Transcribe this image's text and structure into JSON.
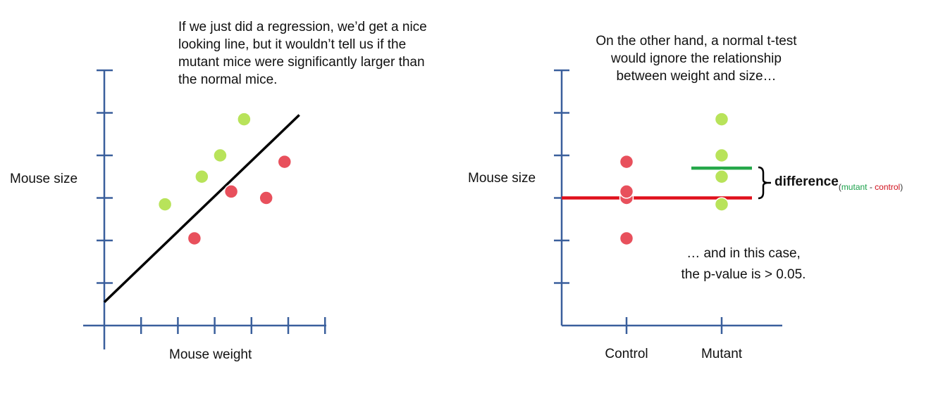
{
  "left_panel": {
    "caption": [
      "If we just did a regression, we’d get a nice",
      "looking line, but it wouldn’t tell us if the",
      "mutant mice were significantly larger than",
      "the normal mice."
    ]
  },
  "right_panel": {
    "caption": [
      "On the other hand, a normal t-test",
      "would ignore the relationship",
      "between weight and size…"
    ],
    "note": [
      "… and in this case,",
      "the p-value is > 0.05."
    ],
    "difference_label": "difference",
    "difference_subscript": {
      "open": "(",
      "mutant": "mutant",
      "dash": " - ",
      "control": "control",
      "close": ")"
    }
  },
  "colors": {
    "axis": "#3a5f9c",
    "green_point": "#b8e35a",
    "red_point": "#e8505c",
    "control_line": "#e0101c",
    "mutant_line": "#25a84a",
    "regression_line": "#000000"
  },
  "chart_data": [
    {
      "type": "scatter",
      "xlabel": "Mouse weight",
      "ylabel": "Mouse size",
      "xlim": [
        0,
        6
      ],
      "ylim": [
        0,
        6
      ],
      "x_ticks": 6,
      "y_ticks": 6,
      "series": [
        {
          "color": "green",
          "points": [
            [
              1.65,
              2.85
            ],
            [
              2.65,
              3.5
            ],
            [
              3.15,
              4.0
            ],
            [
              3.8,
              4.85
            ]
          ]
        },
        {
          "color": "red",
          "points": [
            [
              2.45,
              2.05
            ],
            [
              3.45,
              3.15
            ],
            [
              4.4,
              3.0
            ],
            [
              4.9,
              3.85
            ]
          ]
        }
      ],
      "regression_line": [
        [
          0,
          0.55
        ],
        [
          5.3,
          4.95
        ]
      ]
    },
    {
      "type": "scatter",
      "ylabel": "Mouse size",
      "categories": [
        "Control",
        "Mutant"
      ],
      "ylim": [
        0,
        6
      ],
      "y_ticks": 6,
      "series": [
        {
          "category": "Control",
          "color": "red",
          "values": [
            2.05,
            3.0,
            3.15,
            3.85
          ]
        },
        {
          "category": "Mutant",
          "color": "green",
          "values": [
            2.85,
            3.5,
            4.0,
            4.85
          ]
        }
      ],
      "mean_lines": [
        {
          "category": "Control",
          "value": 3.0,
          "color": "red"
        },
        {
          "category": "Mutant",
          "value": 3.7,
          "color": "green"
        }
      ]
    }
  ]
}
